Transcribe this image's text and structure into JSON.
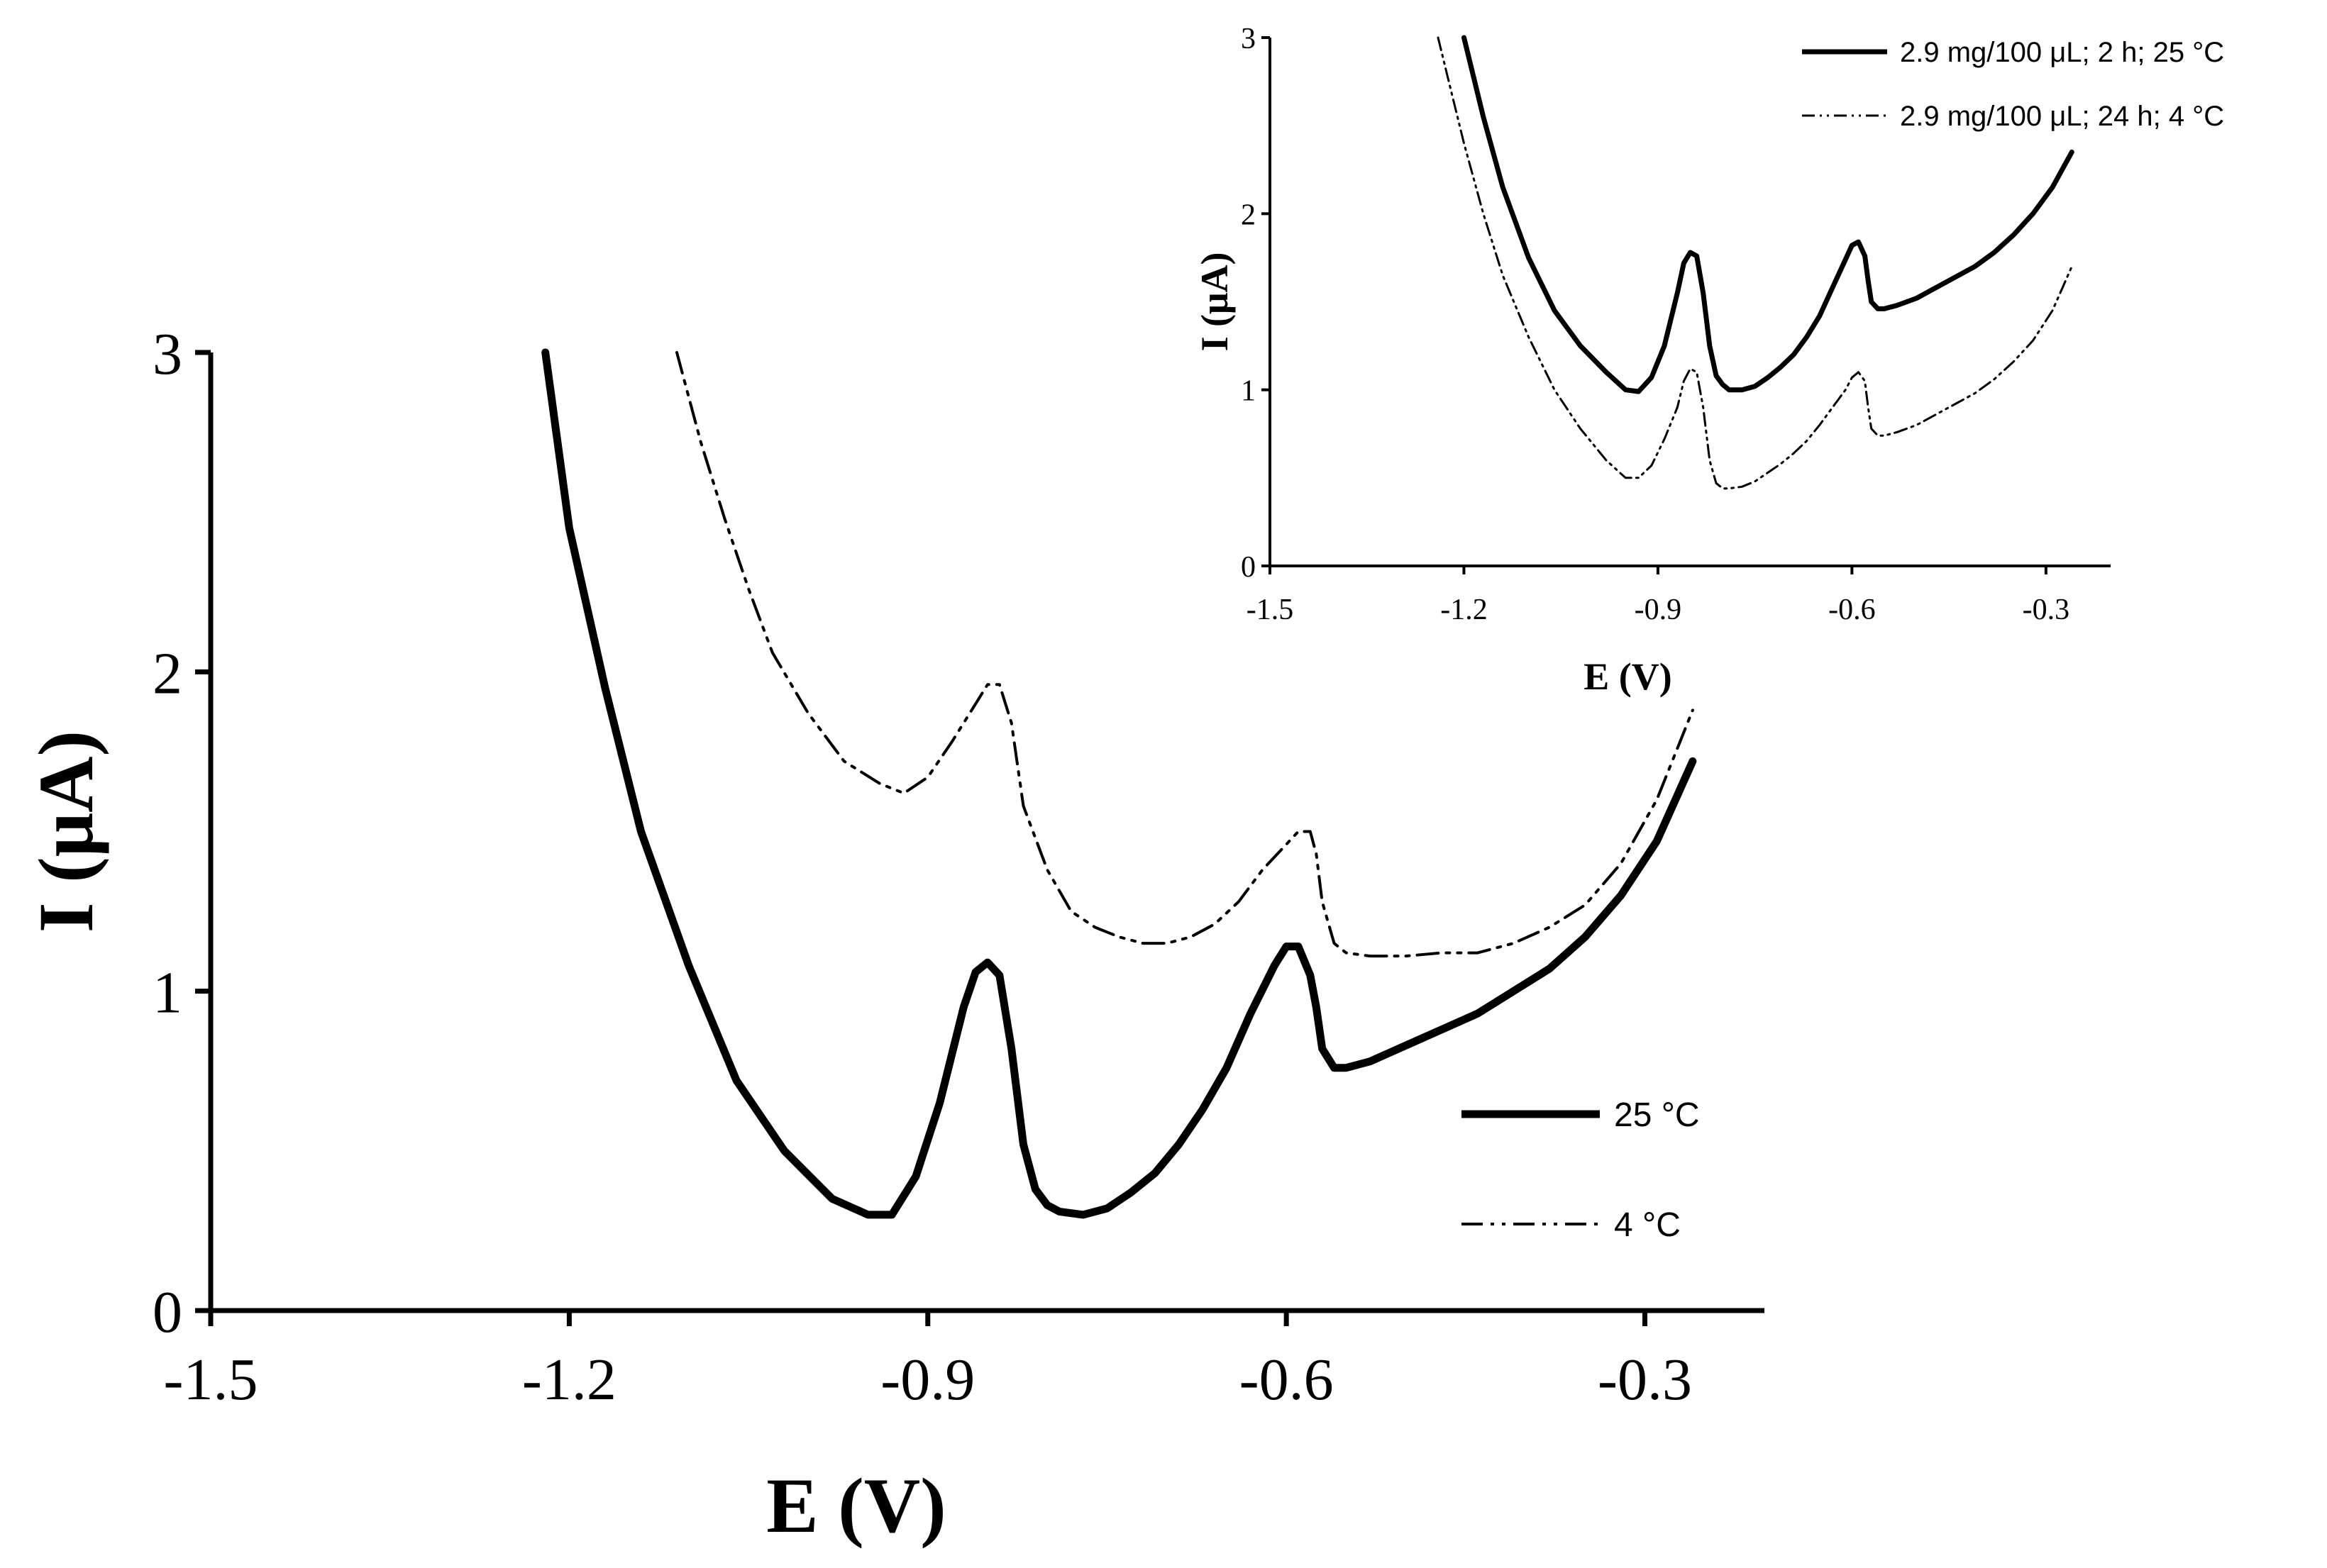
{
  "chart_data": [
    {
      "type": "line",
      "role": "main",
      "xlabel": "E (V)",
      "ylabel": "I (μA)",
      "xlim": [
        -1.5,
        -0.2
      ],
      "ylim": [
        0,
        3
      ],
      "xticks": [
        -1.5,
        -1.2,
        -0.9,
        -0.6,
        -0.3
      ],
      "xtick_labels": [
        "-1.5",
        "-1.2",
        "-0.9",
        "-0.6",
        "-0.3"
      ],
      "yticks": [
        0,
        1,
        2,
        3
      ],
      "ytick_labels": [
        "0",
        "1",
        "2",
        "3"
      ],
      "legend": "right-middle",
      "series": [
        {
          "name": "25 °C",
          "style": "solid-thick",
          "color": "#000000",
          "x": [
            -1.22,
            -1.2,
            -1.17,
            -1.14,
            -1.1,
            -1.06,
            -1.02,
            -0.98,
            -0.95,
            -0.93,
            -0.91,
            -0.89,
            -0.87,
            -0.86,
            -0.85,
            -0.84,
            -0.83,
            -0.82,
            -0.81,
            -0.8,
            -0.79,
            -0.77,
            -0.75,
            -0.73,
            -0.71,
            -0.69,
            -0.67,
            -0.65,
            -0.63,
            -0.61,
            -0.6,
            -0.59,
            -0.58,
            -0.575,
            -0.57,
            -0.56,
            -0.55,
            -0.53,
            -0.5,
            -0.47,
            -0.44,
            -0.41,
            -0.38,
            -0.35,
            -0.32,
            -0.29,
            -0.26
          ],
          "y": [
            3.0,
            2.45,
            1.95,
            1.5,
            1.08,
            0.72,
            0.5,
            0.35,
            0.3,
            0.3,
            0.42,
            0.65,
            0.95,
            1.06,
            1.09,
            1.05,
            0.82,
            0.52,
            0.38,
            0.33,
            0.31,
            0.3,
            0.32,
            0.37,
            0.43,
            0.52,
            0.63,
            0.76,
            0.93,
            1.08,
            1.14,
            1.14,
            1.05,
            0.95,
            0.82,
            0.76,
            0.76,
            0.78,
            0.83,
            0.88,
            0.93,
            1.0,
            1.07,
            1.17,
            1.3,
            1.47,
            1.72
          ]
        },
        {
          "name": "4 °C",
          "style": "dash-dot-dot",
          "color": "#000000",
          "x": [
            -1.11,
            -1.09,
            -1.07,
            -1.05,
            -1.03,
            -1.0,
            -0.97,
            -0.94,
            -0.92,
            -0.9,
            -0.88,
            -0.86,
            -0.85,
            -0.84,
            -0.83,
            -0.82,
            -0.8,
            -0.78,
            -0.76,
            -0.74,
            -0.72,
            -0.7,
            -0.68,
            -0.66,
            -0.64,
            -0.62,
            -0.6,
            -0.59,
            -0.58,
            -0.575,
            -0.57,
            -0.56,
            -0.55,
            -0.53,
            -0.5,
            -0.47,
            -0.44,
            -0.41,
            -0.38,
            -0.35,
            -0.32,
            -0.29,
            -0.26
          ],
          "y": [
            3.0,
            2.72,
            2.48,
            2.26,
            2.06,
            1.87,
            1.72,
            1.65,
            1.62,
            1.67,
            1.78,
            1.9,
            1.96,
            1.96,
            1.84,
            1.58,
            1.38,
            1.25,
            1.2,
            1.17,
            1.15,
            1.15,
            1.17,
            1.21,
            1.28,
            1.38,
            1.46,
            1.5,
            1.5,
            1.43,
            1.28,
            1.15,
            1.12,
            1.11,
            1.11,
            1.12,
            1.12,
            1.15,
            1.2,
            1.27,
            1.4,
            1.6,
            1.88
          ]
        }
      ]
    },
    {
      "type": "line",
      "role": "inset",
      "xlabel": "E (V)",
      "ylabel": "I (μA)",
      "xlim": [
        -1.5,
        -0.2
      ],
      "ylim": [
        0,
        3
      ],
      "xticks": [
        -1.5,
        -1.2,
        -0.9,
        -0.6,
        -0.3
      ],
      "xtick_labels": [
        "-1.5",
        "-1.2",
        "-0.9",
        "-0.6",
        "-0.3"
      ],
      "yticks": [
        0,
        1,
        2,
        3
      ],
      "ytick_labels": [
        "0",
        "1",
        "2",
        "3"
      ],
      "legend": "top-right",
      "series": [
        {
          "name": "2.9 mg/100 μL; 2 h; 25 °C",
          "style": "solid",
          "color": "#000000",
          "x": [
            -1.2,
            -1.17,
            -1.14,
            -1.1,
            -1.06,
            -1.02,
            -0.98,
            -0.95,
            -0.93,
            -0.91,
            -0.89,
            -0.87,
            -0.86,
            -0.85,
            -0.84,
            -0.83,
            -0.82,
            -0.81,
            -0.8,
            -0.79,
            -0.77,
            -0.75,
            -0.73,
            -0.71,
            -0.69,
            -0.67,
            -0.65,
            -0.63,
            -0.61,
            -0.6,
            -0.59,
            -0.58,
            -0.575,
            -0.57,
            -0.56,
            -0.55,
            -0.53,
            -0.5,
            -0.47,
            -0.44,
            -0.41,
            -0.38,
            -0.35,
            -0.32,
            -0.29,
            -0.26
          ],
          "y": [
            3.0,
            2.55,
            2.15,
            1.75,
            1.45,
            1.25,
            1.1,
            1.0,
            0.99,
            1.07,
            1.25,
            1.55,
            1.72,
            1.78,
            1.76,
            1.55,
            1.25,
            1.08,
            1.03,
            1.0,
            1.0,
            1.02,
            1.07,
            1.13,
            1.2,
            1.3,
            1.42,
            1.58,
            1.74,
            1.82,
            1.84,
            1.76,
            1.62,
            1.5,
            1.46,
            1.46,
            1.48,
            1.52,
            1.58,
            1.64,
            1.7,
            1.78,
            1.88,
            2.0,
            2.15,
            2.35
          ]
        },
        {
          "name": "2.9 mg/100 μL; 24 h; 4 °C",
          "style": "dash-dot-dot",
          "color": "#000000",
          "x": [
            -1.24,
            -1.22,
            -1.2,
            -1.17,
            -1.14,
            -1.1,
            -1.06,
            -1.02,
            -0.98,
            -0.95,
            -0.93,
            -0.91,
            -0.89,
            -0.87,
            -0.86,
            -0.85,
            -0.84,
            -0.83,
            -0.82,
            -0.81,
            -0.8,
            -0.79,
            -0.77,
            -0.75,
            -0.73,
            -0.71,
            -0.69,
            -0.67,
            -0.65,
            -0.63,
            -0.61,
            -0.6,
            -0.59,
            -0.58,
            -0.575,
            -0.57,
            -0.56,
            -0.55,
            -0.53,
            -0.5,
            -0.47,
            -0.44,
            -0.41,
            -0.38,
            -0.35,
            -0.32,
            -0.29,
            -0.26
          ],
          "y": [
            3.0,
            2.7,
            2.4,
            2.0,
            1.65,
            1.3,
            1.0,
            0.78,
            0.6,
            0.5,
            0.5,
            0.57,
            0.72,
            0.9,
            1.05,
            1.12,
            1.1,
            0.9,
            0.6,
            0.47,
            0.44,
            0.44,
            0.45,
            0.48,
            0.53,
            0.58,
            0.64,
            0.71,
            0.8,
            0.9,
            1.0,
            1.07,
            1.1,
            1.05,
            0.9,
            0.78,
            0.74,
            0.74,
            0.76,
            0.8,
            0.86,
            0.92,
            0.98,
            1.06,
            1.16,
            1.28,
            1.45,
            1.7
          ]
        }
      ]
    }
  ]
}
